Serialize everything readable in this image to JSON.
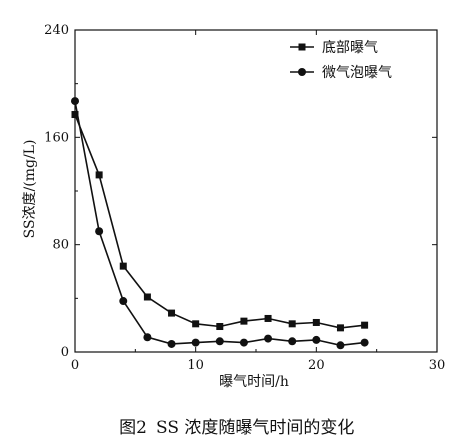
{
  "chart_data": {
    "type": "line",
    "title": "",
    "caption": {
      "number": "图2",
      "text": "SS 浓度随曝气时间的变化"
    },
    "xlabel": "曝气时间/h",
    "ylabel": "SS浓度/(mg/L)",
    "xlim": [
      0,
      30
    ],
    "ylim": [
      0,
      240
    ],
    "x_ticks": [
      0,
      10,
      20,
      30
    ],
    "y_ticks": [
      0,
      80,
      160,
      240
    ],
    "legend_position": "top-right",
    "grid": false,
    "series": [
      {
        "name": "底部曝气",
        "marker": "square",
        "x": [
          0,
          2,
          4,
          6,
          8,
          10,
          12,
          14,
          16,
          18,
          20,
          22,
          24
        ],
        "values": [
          177,
          132,
          64,
          41,
          29,
          21,
          19,
          23,
          25,
          21,
          22,
          18,
          20
        ]
      },
      {
        "name": "微气泡曝气",
        "marker": "circle",
        "x": [
          0,
          2,
          4,
          6,
          8,
          10,
          12,
          14,
          16,
          18,
          20,
          22,
          24
        ],
        "values": [
          187,
          90,
          38,
          11,
          6,
          7,
          8,
          7,
          10,
          8,
          9,
          5,
          7
        ]
      }
    ],
    "colors": {
      "line": "#111111",
      "axis": "#111111",
      "background": "#ffffff"
    }
  }
}
